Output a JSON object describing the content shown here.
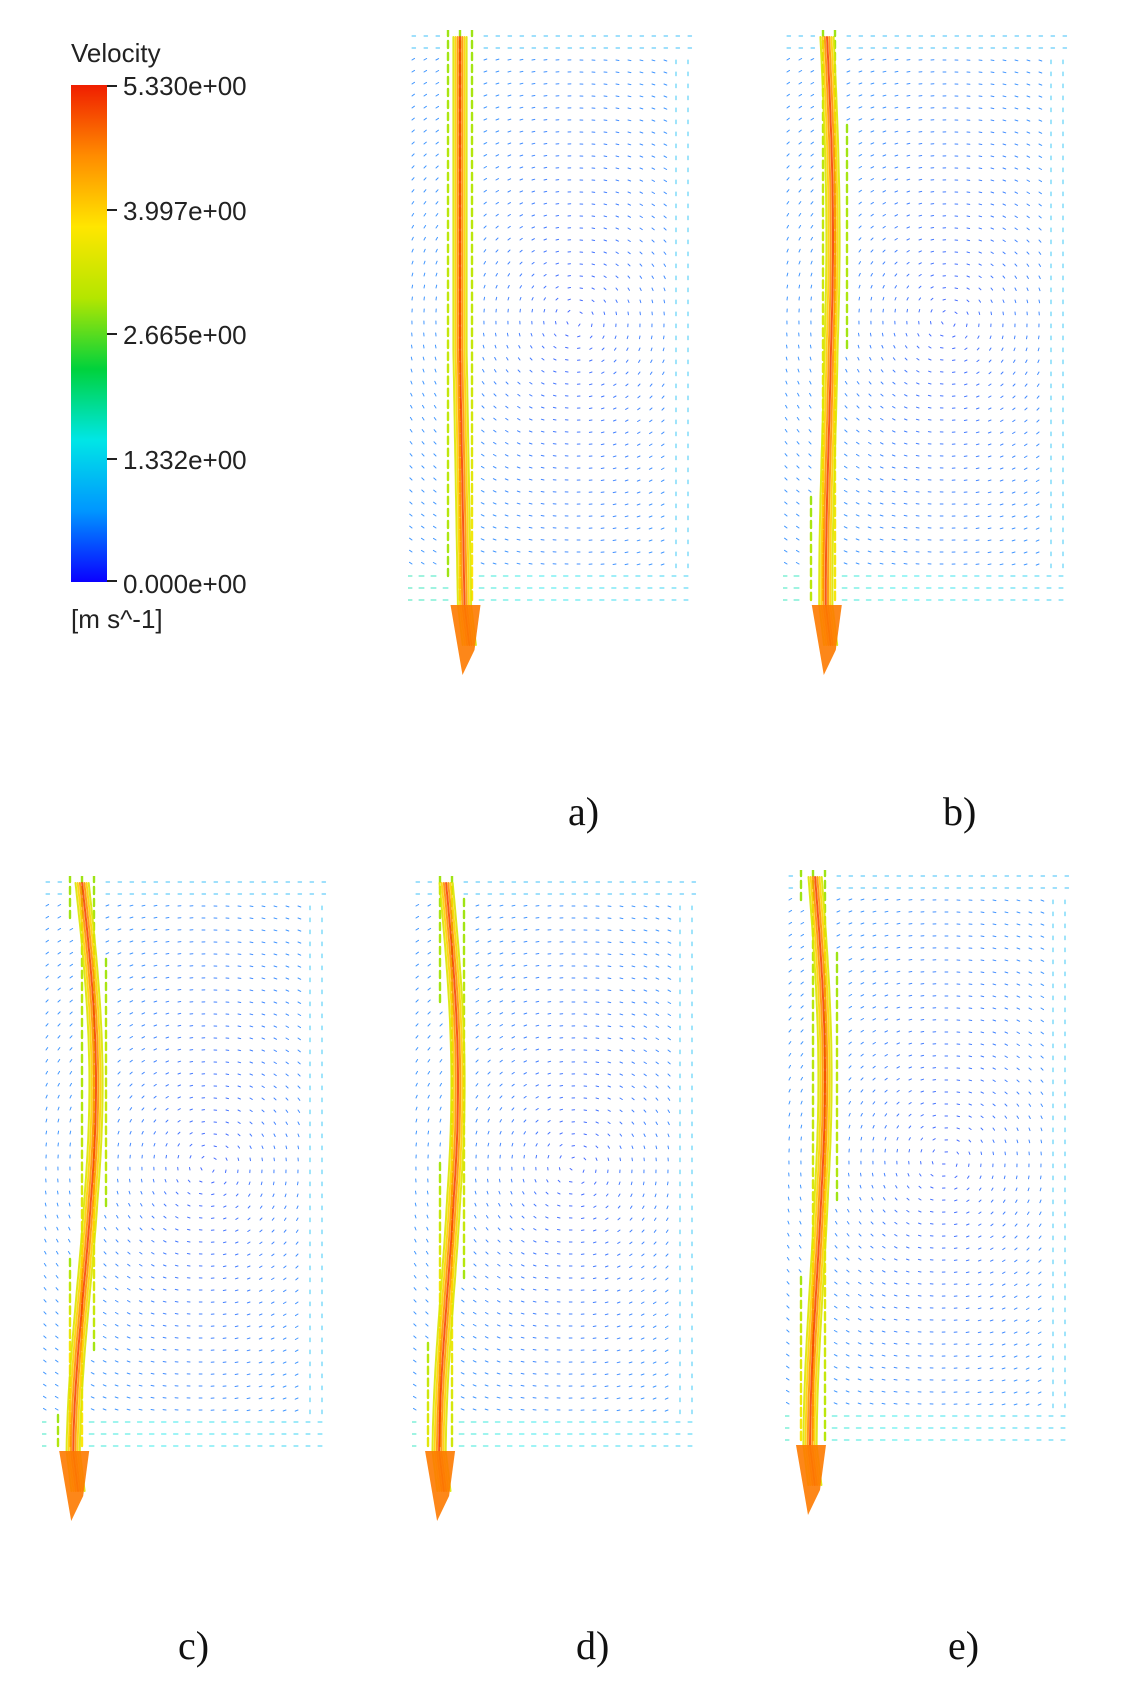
{
  "legend": {
    "title": "Velocity",
    "unit": "[m s^-1]",
    "max_value": 5.33,
    "ticks": [
      {
        "value": 5.33,
        "label": "5.330e+00"
      },
      {
        "value": 3.997,
        "label": "3.997e+00"
      },
      {
        "value": 2.665,
        "label": "2.665e+00"
      },
      {
        "value": 1.332,
        "label": "1.332e+00"
      },
      {
        "value": 0.0,
        "label": "0.000e+00"
      }
    ],
    "colormap": [
      "#0a00ff",
      "#0096ff",
      "#00e6e6",
      "#00d23c",
      "#b4e600",
      "#ffe600",
      "#ff8c00",
      "#f01e00"
    ]
  },
  "panels": [
    {
      "id": "a",
      "caption": "a)"
    },
    {
      "id": "b",
      "caption": "b)"
    },
    {
      "id": "c",
      "caption": "c)"
    },
    {
      "id": "d",
      "caption": "d)"
    },
    {
      "id": "e",
      "caption": "e)"
    }
  ]
}
